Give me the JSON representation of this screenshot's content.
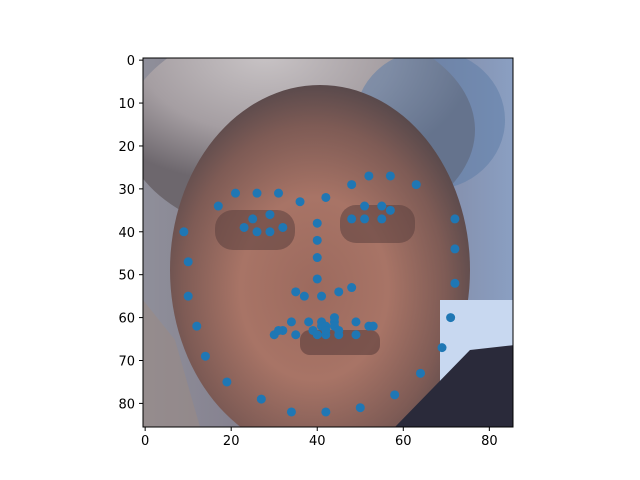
{
  "chart_data": {
    "type": "scatter",
    "title": "",
    "xlabel": "",
    "ylabel": "",
    "xlim": [
      -0.5,
      85.5
    ],
    "ylim": [
      85.5,
      -0.5
    ],
    "y_inverted": true,
    "x_ticks": [
      0,
      20,
      40,
      60,
      80
    ],
    "y_ticks": [
      0,
      10,
      20,
      30,
      40,
      50,
      60,
      70,
      80
    ],
    "background": "grayscale face photograph (image display)",
    "marker_color": "#1f77b4",
    "series": [
      {
        "points": [
          [
            9,
            40
          ],
          [
            10,
            47
          ],
          [
            10,
            55
          ],
          [
            12,
            62
          ],
          [
            14,
            69
          ],
          [
            19,
            75
          ],
          [
            27,
            79
          ],
          [
            34,
            82
          ],
          [
            42,
            82
          ],
          [
            50,
            81
          ],
          [
            58,
            78
          ],
          [
            64,
            73
          ],
          [
            69,
            67
          ],
          [
            71,
            60
          ],
          [
            72,
            52
          ],
          [
            72,
            44
          ],
          [
            72,
            37
          ],
          [
            17,
            34
          ],
          [
            21,
            31
          ],
          [
            26,
            31
          ],
          [
            31,
            31
          ],
          [
            36,
            33
          ],
          [
            48,
            29
          ],
          [
            52,
            27
          ],
          [
            57,
            27
          ],
          [
            63,
            29
          ],
          [
            42,
            32
          ],
          [
            40,
            38
          ],
          [
            40,
            42
          ],
          [
            40,
            46
          ],
          [
            40,
            51
          ],
          [
            35,
            54
          ],
          [
            37,
            55
          ],
          [
            41,
            55
          ],
          [
            45,
            54
          ],
          [
            48,
            53
          ],
          [
            23,
            39
          ],
          [
            25,
            37
          ],
          [
            29,
            36
          ],
          [
            32,
            39
          ],
          [
            29,
            40
          ],
          [
            26,
            40
          ],
          [
            48,
            37
          ],
          [
            51,
            34
          ],
          [
            55,
            34
          ],
          [
            57,
            35
          ],
          [
            55,
            37
          ],
          [
            51,
            37
          ],
          [
            30,
            64
          ],
          [
            32,
            63
          ],
          [
            34,
            61
          ],
          [
            38,
            61
          ],
          [
            41,
            61
          ],
          [
            44,
            61
          ],
          [
            49,
            61
          ],
          [
            52,
            62
          ],
          [
            53,
            62
          ],
          [
            31,
            63
          ],
          [
            35,
            64
          ],
          [
            39,
            63
          ],
          [
            41,
            62
          ],
          [
            42,
            62
          ],
          [
            42,
            64
          ],
          [
            44,
            62
          ],
          [
            45,
            64
          ],
          [
            49,
            64
          ],
          [
            40,
            64
          ],
          [
            42,
            63
          ],
          [
            44,
            60
          ],
          [
            45,
            63
          ]
        ]
      }
    ]
  }
}
